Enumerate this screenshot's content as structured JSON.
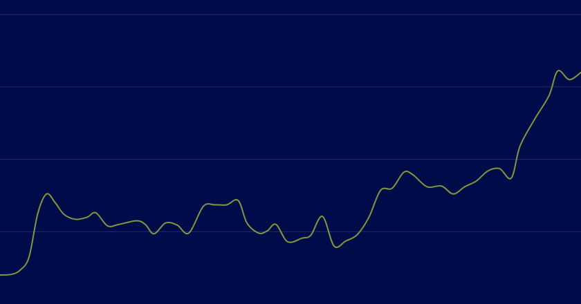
{
  "chart_data": {
    "type": "line",
    "title": "",
    "xlabel": "",
    "ylabel": "",
    "grid": true,
    "y_gridlines": [
      1,
      2,
      3,
      4
    ],
    "ylim": [
      0,
      4.2
    ],
    "xlim": [
      0,
      100
    ],
    "series": [
      {
        "color": "#7d9a3c",
        "points": [
          [
            0,
            0.4
          ],
          [
            2,
            0.41
          ],
          [
            3.5,
            0.47
          ],
          [
            5,
            0.65
          ],
          [
            6.5,
            1.25
          ],
          [
            8,
            1.52
          ],
          [
            9.5,
            1.4
          ],
          [
            11,
            1.24
          ],
          [
            13,
            1.17
          ],
          [
            15,
            1.2
          ],
          [
            16.5,
            1.26
          ],
          [
            18.5,
            1.08
          ],
          [
            20.5,
            1.1
          ],
          [
            23.5,
            1.15
          ],
          [
            25,
            1.1
          ],
          [
            26.5,
            0.97
          ],
          [
            28.5,
            1.12
          ],
          [
            30.5,
            1.09
          ],
          [
            32.5,
            0.98
          ],
          [
            35,
            1.35
          ],
          [
            37,
            1.37
          ],
          [
            39,
            1.37
          ],
          [
            41,
            1.43
          ],
          [
            42.5,
            1.12
          ],
          [
            44.5,
            0.98
          ],
          [
            46,
            1.01
          ],
          [
            47.5,
            1.1
          ],
          [
            49.5,
            0.86
          ],
          [
            52,
            0.91
          ],
          [
            53.5,
            0.95
          ],
          [
            55.5,
            1.21
          ],
          [
            57.5,
            0.8
          ],
          [
            59.5,
            0.87
          ],
          [
            61.5,
            0.96
          ],
          [
            63.5,
            1.2
          ],
          [
            65.5,
            1.57
          ],
          [
            67.5,
            1.6
          ],
          [
            69.5,
            1.82
          ],
          [
            71,
            1.79
          ],
          [
            73.5,
            1.62
          ],
          [
            76,
            1.63
          ],
          [
            78,
            1.52
          ],
          [
            80,
            1.62
          ],
          [
            82,
            1.7
          ],
          [
            84,
            1.84
          ],
          [
            86,
            1.87
          ],
          [
            88,
            1.74
          ],
          [
            89.5,
            2.18
          ],
          [
            92,
            2.55
          ],
          [
            94.5,
            2.88
          ],
          [
            96,
            3.22
          ],
          [
            98,
            3.1
          ],
          [
            100,
            3.2
          ]
        ]
      }
    ]
  }
}
